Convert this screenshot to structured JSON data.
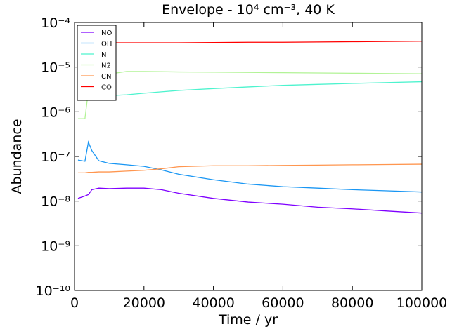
{
  "chart_data": {
    "type": "line",
    "title": "Envelope - 10⁴  cm⁻³, 40 K",
    "xlabel": "Time / yr",
    "ylabel": "Abundance",
    "yscale": "log",
    "legend": "upper left",
    "xlim": [
      0,
      100000
    ],
    "xticks": [
      0,
      20000,
      40000,
      60000,
      80000,
      100000
    ],
    "ylim": [
      1e-10,
      0.0001
    ],
    "yticks": [
      {
        "value": 1e-10,
        "label": "10⁻¹⁰"
      },
      {
        "value": 1e-09,
        "label": "10⁻⁹"
      },
      {
        "value": 1e-08,
        "label": "10⁻⁸"
      },
      {
        "value": 1e-07,
        "label": "10⁻⁷"
      },
      {
        "value": 1e-06,
        "label": "10⁻⁶"
      },
      {
        "value": 1e-05,
        "label": "10⁻⁵"
      },
      {
        "value": 0.0001,
        "label": "10⁻⁴"
      }
    ],
    "x": [
      1000,
      3000,
      4000,
      5000,
      7000,
      10000,
      15000,
      20000,
      25000,
      30000,
      40000,
      50000,
      60000,
      70000,
      80000,
      90000,
      100000
    ],
    "series": [
      {
        "name": "NO",
        "color": "#7f00ff",
        "values": [
          1.15e-08,
          1.3e-08,
          1.4e-08,
          1.8e-08,
          1.95e-08,
          1.9e-08,
          1.95e-08,
          1.95e-08,
          1.8e-08,
          1.5e-08,
          1.15e-08,
          9.5e-09,
          8.5e-09,
          7.3e-09,
          6.7e-09,
          6e-09,
          5.4e-09
        ]
      },
      {
        "name": "OH",
        "color": "#1996f3",
        "values": [
          8.3e-08,
          7.8e-08,
          2.1e-07,
          1.35e-07,
          8e-08,
          7e-08,
          6.5e-08,
          6e-08,
          5e-08,
          4e-08,
          3e-08,
          2.4e-08,
          2.1e-08,
          1.95e-08,
          1.8e-08,
          1.7e-08,
          1.6e-08
        ]
      },
      {
        "name": "N",
        "color": "#4df3ce",
        "values": [
          2e-06,
          2.2e-06,
          2.2e-06,
          2.2e-06,
          2.3e-06,
          2.3e-06,
          2.4e-06,
          2.6e-06,
          2.8e-06,
          3e-06,
          3.3e-06,
          3.6e-06,
          3.9e-06,
          4.1e-06,
          4.3e-06,
          4.5e-06,
          4.7e-06
        ]
      },
      {
        "name": "N2",
        "color": "#b2f396",
        "values": [
          7e-07,
          7e-07,
          3e-06,
          5e-06,
          6e-06,
          7e-06,
          8e-06,
          8e-06,
          7.9e-06,
          7.8e-06,
          7.7e-06,
          7.6e-06,
          7.5e-06,
          7.4e-06,
          7.3e-06,
          7.2e-06,
          7.1e-06
        ]
      },
      {
        "name": "CN",
        "color": "#ff964f",
        "values": [
          4.3e-08,
          4.3e-08,
          4.4e-08,
          4.4e-08,
          4.5e-08,
          4.5e-08,
          4.7e-08,
          4.9e-08,
          5.3e-08,
          5.9e-08,
          6.2e-08,
          6.2e-08,
          6.3e-08,
          6.4e-08,
          6.5e-08,
          6.6e-08,
          6.7e-08
        ]
      },
      {
        "name": "CO",
        "color": "#ff0000",
        "values": [
          3.5e-05,
          3.5e-05,
          3.5e-05,
          3.5e-05,
          3.5e-05,
          3.5e-05,
          3.5e-05,
          3.5e-05,
          3.5e-05,
          3.5e-05,
          3.55e-05,
          3.6e-05,
          3.6e-05,
          3.65e-05,
          3.7e-05,
          3.75e-05,
          3.8e-05
        ]
      }
    ]
  }
}
